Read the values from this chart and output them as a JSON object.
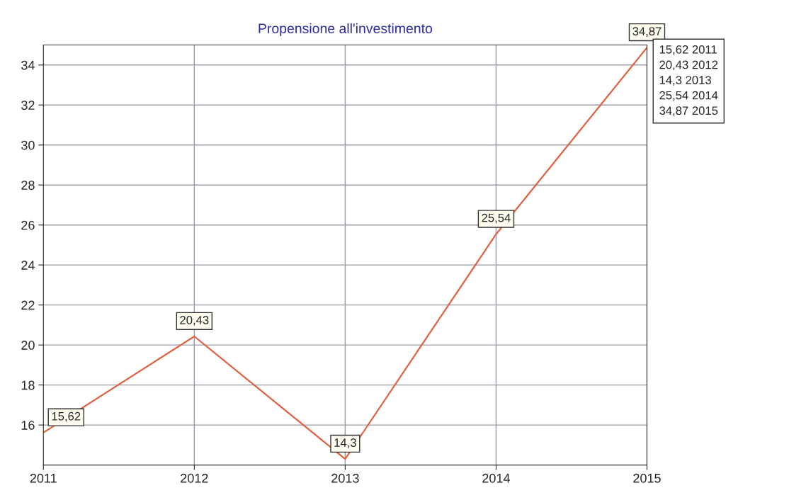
{
  "chart_data": {
    "type": "line",
    "title": "Propensione all'investimento",
    "x": [
      2011,
      2012,
      2013,
      2014,
      2015
    ],
    "series": [
      {
        "color": "#e06040",
        "values": [
          15.62,
          20.43,
          14.3,
          25.54,
          34.87
        ],
        "value_labels": [
          "15,62",
          "20,43",
          "14,3",
          "25,54",
          "34,87"
        ]
      }
    ],
    "xlim": [
      2011,
      2015
    ],
    "xticks": [
      2011,
      2012,
      2013,
      2014,
      2015
    ],
    "ylim": [
      14,
      35
    ],
    "yticks": [
      16,
      18,
      20,
      22,
      24,
      26,
      28,
      30,
      32,
      34
    ],
    "grid": true,
    "marker": "none",
    "line_style": "solid",
    "annotations": [
      "15,62 2011",
      "20,43 2012",
      "14,3 2013",
      "25,54 2014",
      "34,87 2015"
    ]
  }
}
